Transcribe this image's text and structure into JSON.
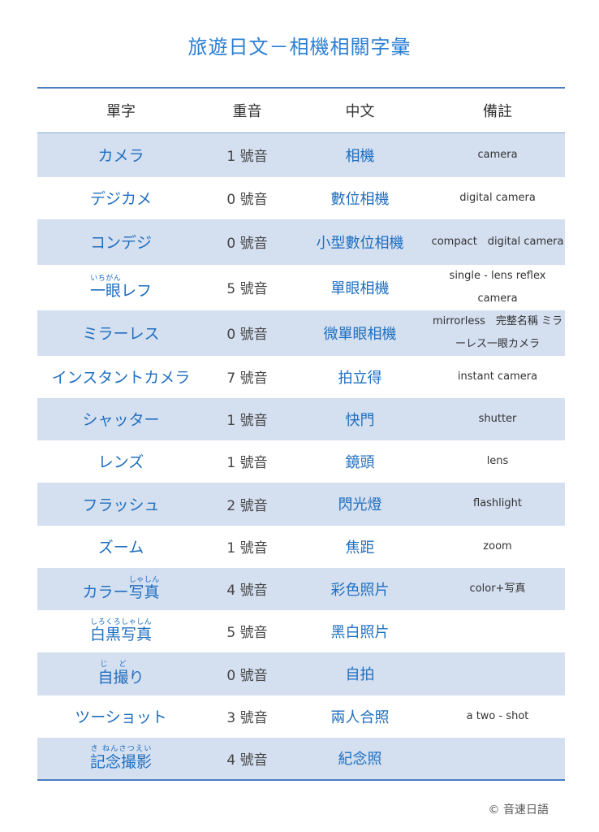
{
  "title": "旅遊日文－相機相關字彙",
  "headers": [
    "單字",
    "重音",
    "中文",
    "備註"
  ],
  "rows": [
    {
      "word": "カメラ",
      "accent": "1 號音",
      "zh": "相機",
      "note": "camera"
    },
    {
      "word": "デジカメ",
      "accent": "0 號音",
      "zh": "數位相機",
      "note": "digital camera"
    },
    {
      "word": "コンデジ",
      "accent": "0 號音",
      "zh": "小型數位相機",
      "note": "compact　digital camera"
    },
    {
      "word_pre": "",
      "word_ruby": "一眼",
      "ruby": "いちがん",
      "word_post": "レフ",
      "accent": "5 號音",
      "zh": "單眼相機",
      "note": "single - lens reflex camera"
    },
    {
      "word": "ミラーレス",
      "accent": "0 號音",
      "zh": "微單眼相機",
      "note": "mirrorless　完整名稱 ミラーレス一眼カメラ"
    },
    {
      "word": "インスタントカメラ",
      "accent": "7 號音",
      "zh": "拍立得",
      "note": "instant camera"
    },
    {
      "word": "シャッター",
      "accent": "1 號音",
      "zh": "快門",
      "note": "shutter"
    },
    {
      "word": "レンズ",
      "accent": "1 號音",
      "zh": "鏡頭",
      "note": "lens"
    },
    {
      "word": "フラッシュ",
      "accent": "2 號音",
      "zh": "閃光燈",
      "note": "flashlight"
    },
    {
      "word": "ズーム",
      "accent": "1 號音",
      "zh": "焦距",
      "note": "zoom"
    },
    {
      "word_pre": "カラー",
      "word_ruby": "写真",
      "ruby": "しゃしん",
      "word_post": "",
      "accent": "4 號音",
      "zh": "彩色照片",
      "note": "color+写真"
    },
    {
      "word_pre": "",
      "word_ruby": "白黒写真",
      "ruby": "しろくろしゃしん",
      "word_post": "",
      "accent": "5 號音",
      "zh": "黑白照片",
      "note": ""
    },
    {
      "word_pre": "",
      "word_ruby": "自撮",
      "ruby": "じ ど",
      "word_post": "り",
      "accent": "0 號音",
      "zh": "自拍",
      "note": ""
    },
    {
      "word": "ツーショット",
      "accent": "3 號音",
      "zh": "兩人合照",
      "note": "a two - shot"
    },
    {
      "word_pre": "",
      "word_ruby": "記念撮影",
      "ruby": "き ねんさつえい",
      "word_post": "",
      "accent": "4 號音",
      "zh": "紀念照",
      "note": ""
    }
  ],
  "copyright": "©  音速日語"
}
